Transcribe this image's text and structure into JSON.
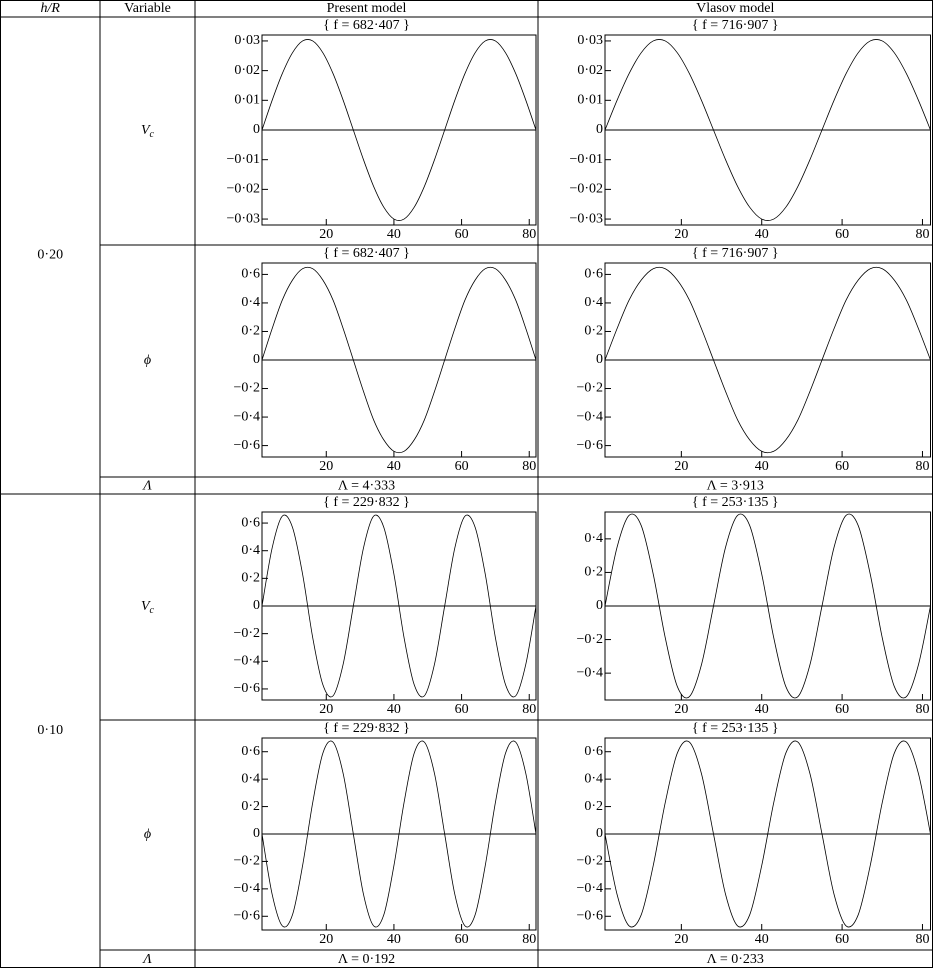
{
  "table": {
    "header": [
      "h/R",
      "Variable",
      "Present model",
      "Vlasov model"
    ],
    "blocks": [
      {
        "h": "0·20",
        "rows": [
          {
            "variable": {
              "symbol": "V",
              "subscript": "c"
            },
            "present": {
              "type": "line",
              "title": "{ f = 682·407 }",
              "x": [
                1,
                4,
                7,
                10,
                13,
                16,
                19,
                22,
                25,
                28,
                31,
                34,
                37,
                40,
                43,
                46,
                49,
                52,
                55,
                58,
                61,
                64,
                67,
                70,
                73,
                76,
                79,
                82
              ],
              "values": [
                0,
                0.01,
                0.019,
                0.026,
                0.03,
                0.03,
                0.026,
                0.019,
                0.01,
                0,
                -0.01,
                -0.019,
                -0.026,
                -0.03,
                -0.03,
                -0.026,
                -0.019,
                -0.01,
                0,
                0.01,
                0.019,
                0.026,
                0.03,
                0.03,
                0.026,
                0.019,
                0.01,
                0
              ],
              "xlim": [
                1,
                82
              ],
              "xticks": [
                20,
                40,
                60,
                80
              ],
              "ylim": [
                -0.032,
                0.032
              ],
              "yticks": [
                {
                  "value": -0.03,
                  "label": "−0·03"
                },
                {
                  "value": -0.02,
                  "label": "−0·02"
                },
                {
                  "value": -0.01,
                  "label": "−0·01"
                },
                0,
                {
                  "value": 0.01,
                  "label": "0·01"
                },
                {
                  "value": 0.02,
                  "label": "0·02"
                },
                {
                  "value": 0.03,
                  "label": "0·03"
                }
              ]
            },
            "vlasov": {
              "type": "line",
              "title": "{ f = 716·907 }",
              "x": [
                1,
                4,
                7,
                10,
                13,
                16,
                19,
                22,
                25,
                28,
                31,
                34,
                37,
                40,
                43,
                46,
                49,
                52,
                55,
                58,
                61,
                64,
                67,
                70,
                73,
                76,
                79,
                82
              ],
              "values": [
                0,
                0.01,
                0.019,
                0.026,
                0.03,
                0.03,
                0.026,
                0.019,
                0.01,
                0,
                -0.01,
                -0.019,
                -0.026,
                -0.03,
                -0.03,
                -0.026,
                -0.019,
                -0.01,
                0,
                0.01,
                0.019,
                0.026,
                0.03,
                0.03,
                0.026,
                0.019,
                0.01,
                0
              ],
              "xlim": [
                1,
                82
              ],
              "xticks": [
                20,
                40,
                60,
                80
              ],
              "ylim": [
                -0.032,
                0.032
              ],
              "yticks": [
                {
                  "value": -0.03,
                  "label": "−0·03"
                },
                {
                  "value": -0.02,
                  "label": "−0·02"
                },
                {
                  "value": -0.01,
                  "label": "−0·01"
                },
                0,
                {
                  "value": 0.01,
                  "label": "0·01"
                },
                {
                  "value": 0.02,
                  "label": "0·02"
                },
                {
                  "value": 0.03,
                  "label": "0·03"
                }
              ]
            }
          },
          {
            "variable": {
              "symbol": "ϕ"
            },
            "present": {
              "type": "line",
              "title": "{ f = 682·407 }",
              "x": [
                1,
                4,
                7,
                10,
                13,
                16,
                19,
                22,
                25,
                28,
                31,
                34,
                37,
                40,
                43,
                46,
                49,
                52,
                55,
                58,
                61,
                64,
                67,
                70,
                73,
                76,
                79,
                82
              ],
              "values": [
                0,
                0.22,
                0.42,
                0.56,
                0.64,
                0.64,
                0.56,
                0.42,
                0.22,
                0,
                -0.22,
                -0.42,
                -0.56,
                -0.64,
                -0.64,
                -0.56,
                -0.42,
                -0.22,
                0,
                0.22,
                0.42,
                0.56,
                0.64,
                0.64,
                0.56,
                0.42,
                0.22,
                0
              ],
              "xlim": [
                1,
                82
              ],
              "xticks": [
                20,
                40,
                60,
                80
              ],
              "ylim": [
                -0.68,
                0.68
              ],
              "yticks": [
                {
                  "value": -0.6,
                  "label": "−0·6"
                },
                {
                  "value": -0.4,
                  "label": "−0·4"
                },
                {
                  "value": -0.2,
                  "label": "−0·2"
                },
                0,
                {
                  "value": 0.2,
                  "label": "0·2"
                },
                {
                  "value": 0.4,
                  "label": "0·4"
                },
                {
                  "value": 0.6,
                  "label": "0·6"
                }
              ]
            },
            "vlasov": {
              "type": "line",
              "title": "{ f = 716·907 }",
              "x": [
                1,
                4,
                7,
                10,
                13,
                16,
                19,
                22,
                25,
                28,
                31,
                34,
                37,
                40,
                43,
                46,
                49,
                52,
                55,
                58,
                61,
                64,
                67,
                70,
                73,
                76,
                79,
                82
              ],
              "values": [
                0,
                0.22,
                0.42,
                0.56,
                0.64,
                0.64,
                0.56,
                0.42,
                0.22,
                0,
                -0.22,
                -0.42,
                -0.56,
                -0.64,
                -0.64,
                -0.56,
                -0.42,
                -0.22,
                0,
                0.22,
                0.42,
                0.56,
                0.64,
                0.64,
                0.56,
                0.42,
                0.22,
                0
              ],
              "xlim": [
                1,
                82
              ],
              "xticks": [
                20,
                40,
                60,
                80
              ],
              "ylim": [
                -0.68,
                0.68
              ],
              "yticks": [
                {
                  "value": -0.6,
                  "label": "−0·6"
                },
                {
                  "value": -0.4,
                  "label": "−0·4"
                },
                {
                  "value": -0.2,
                  "label": "−0·2"
                },
                0,
                {
                  "value": 0.2,
                  "label": "0·2"
                },
                {
                  "value": 0.4,
                  "label": "0·4"
                },
                {
                  "value": 0.6,
                  "label": "0·6"
                }
              ]
            }
          }
        ],
        "lambda": {
          "symbol": "Λ",
          "present": "Λ = 4·333",
          "vlasov": "Λ = 3·913"
        }
      },
      {
        "h": "0·10",
        "rows": [
          {
            "variable": {
              "symbol": "V",
              "subscript": "c"
            },
            "present": {
              "type": "line",
              "title": "{ f = 229·832 }",
              "x": [
                1,
                4,
                7,
                10,
                13,
                16,
                19,
                22,
                25,
                28,
                31,
                34,
                37,
                40,
                43,
                46,
                49,
                52,
                55,
                58,
                61,
                64,
                67,
                70,
                73,
                76,
                79,
                82
              ],
              "values": [
                0,
                0.42,
                0.65,
                0.57,
                0.23,
                -0.23,
                -0.57,
                -0.65,
                -0.42,
                0,
                0.42,
                0.65,
                0.57,
                0.23,
                -0.23,
                -0.57,
                -0.65,
                -0.42,
                0,
                0.42,
                0.65,
                0.57,
                0.23,
                -0.23,
                -0.57,
                -0.65,
                -0.42,
                0
              ],
              "xlim": [
                1,
                82
              ],
              "xticks": [
                20,
                40,
                60,
                80
              ],
              "ylim": [
                -0.68,
                0.68
              ],
              "yticks": [
                {
                  "value": -0.6,
                  "label": "−0·6"
                },
                {
                  "value": -0.4,
                  "label": "−0·4"
                },
                {
                  "value": -0.2,
                  "label": "−0·2"
                },
                0,
                {
                  "value": 0.2,
                  "label": "0·2"
                },
                {
                  "value": 0.4,
                  "label": "0·4"
                },
                {
                  "value": 0.6,
                  "label": "0·6"
                }
              ]
            },
            "vlasov": {
              "type": "line",
              "title": "{ f = 253·135 }",
              "x": [
                1,
                4,
                7,
                10,
                13,
                16,
                19,
                22,
                25,
                28,
                31,
                34,
                37,
                40,
                43,
                46,
                49,
                52,
                55,
                58,
                61,
                64,
                67,
                70,
                73,
                76,
                79,
                82
              ],
              "values": [
                0,
                0.35,
                0.54,
                0.48,
                0.19,
                -0.19,
                -0.48,
                -0.54,
                -0.35,
                0,
                0.35,
                0.54,
                0.48,
                0.19,
                -0.19,
                -0.48,
                -0.54,
                -0.35,
                0,
                0.35,
                0.54,
                0.48,
                0.19,
                -0.19,
                -0.48,
                -0.54,
                -0.35,
                0
              ],
              "xlim": [
                1,
                82
              ],
              "xticks": [
                20,
                40,
                60,
                80
              ],
              "ylim": [
                -0.56,
                0.56
              ],
              "yticks": [
                {
                  "value": -0.4,
                  "label": "−0·4"
                },
                {
                  "value": -0.2,
                  "label": "−0·2"
                },
                0,
                {
                  "value": 0.2,
                  "label": "0·2"
                },
                {
                  "value": 0.4,
                  "label": "0·4"
                }
              ]
            }
          },
          {
            "variable": {
              "symbol": "ϕ"
            },
            "present": {
              "type": "line",
              "title": "{ f = 229·832 }",
              "x": [
                1,
                4,
                7,
                10,
                13,
                16,
                19,
                22,
                25,
                28,
                31,
                34,
                37,
                40,
                43,
                46,
                49,
                52,
                55,
                58,
                61,
                64,
                67,
                70,
                73,
                76,
                79,
                82
              ],
              "values": [
                0,
                -0.44,
                -0.67,
                -0.59,
                -0.23,
                0.23,
                0.59,
                0.67,
                0.44,
                0,
                -0.44,
                -0.67,
                -0.59,
                -0.23,
                0.23,
                0.59,
                0.67,
                0.44,
                0,
                -0.44,
                -0.67,
                -0.59,
                -0.23,
                0.23,
                0.59,
                0.67,
                0.44,
                0
              ],
              "xlim": [
                1,
                82
              ],
              "xticks": [
                20,
                40,
                60,
                80
              ],
              "ylim": [
                -0.7,
                0.7
              ],
              "yticks": [
                {
                  "value": -0.6,
                  "label": "−0·6"
                },
                {
                  "value": -0.4,
                  "label": "−0·4"
                },
                {
                  "value": -0.2,
                  "label": "−0·2"
                },
                0,
                {
                  "value": 0.2,
                  "label": "0·2"
                },
                {
                  "value": 0.4,
                  "label": "0·4"
                },
                {
                  "value": 0.6,
                  "label": "0·6"
                }
              ]
            },
            "vlasov": {
              "type": "line",
              "title": "{ f = 253·135 }",
              "x": [
                1,
                4,
                7,
                10,
                13,
                16,
                19,
                22,
                25,
                28,
                31,
                34,
                37,
                40,
                43,
                46,
                49,
                52,
                55,
                58,
                61,
                64,
                67,
                70,
                73,
                76,
                79,
                82
              ],
              "values": [
                0,
                -0.44,
                -0.67,
                -0.59,
                -0.23,
                0.23,
                0.59,
                0.67,
                0.44,
                0,
                -0.44,
                -0.67,
                -0.59,
                -0.23,
                0.23,
                0.59,
                0.67,
                0.44,
                0,
                -0.44,
                -0.67,
                -0.59,
                -0.23,
                0.23,
                0.59,
                0.67,
                0.44,
                0
              ],
              "xlim": [
                1,
                82
              ],
              "xticks": [
                20,
                40,
                60,
                80
              ],
              "ylim": [
                -0.7,
                0.7
              ],
              "yticks": [
                {
                  "value": -0.6,
                  "label": "−0·6"
                },
                {
                  "value": -0.4,
                  "label": "−0·4"
                },
                {
                  "value": -0.2,
                  "label": "−0·2"
                },
                0,
                {
                  "value": 0.2,
                  "label": "0·2"
                },
                {
                  "value": 0.4,
                  "label": "0·4"
                },
                {
                  "value": 0.6,
                  "label": "0·6"
                }
              ]
            }
          }
        ],
        "lambda": {
          "symbol": "Λ",
          "present": "Λ = 0·192",
          "vlasov": "Λ = 0·233"
        }
      }
    ]
  }
}
